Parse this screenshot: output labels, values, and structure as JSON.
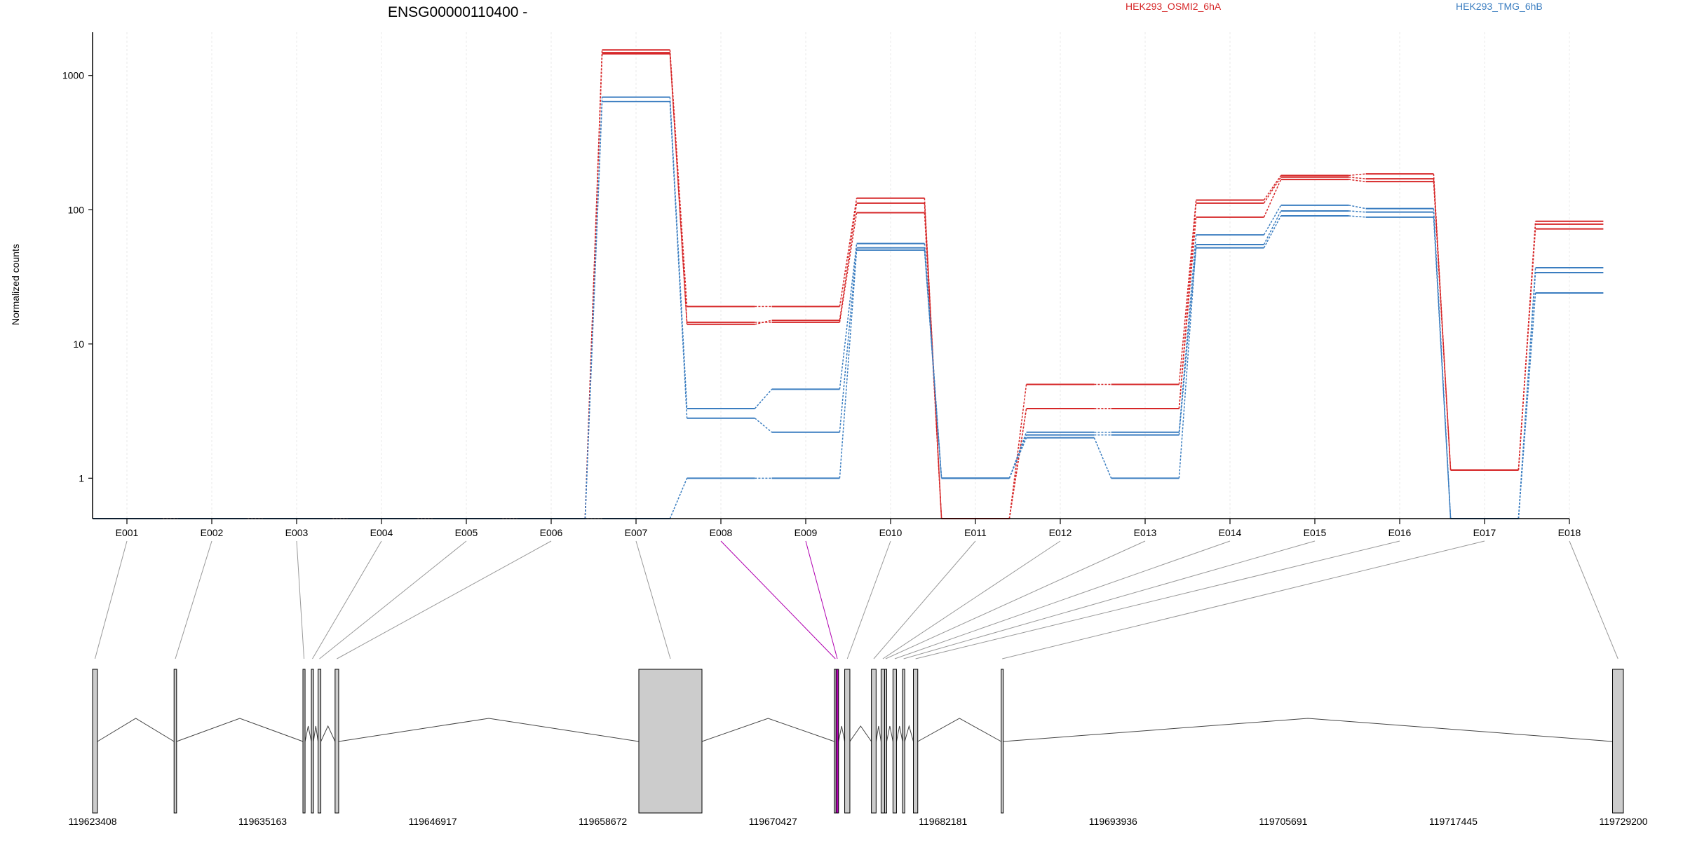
{
  "chart_data": {
    "type": "line",
    "title": "ENSG00000110400 -",
    "ylabel": "Normalized counts",
    "yscale": "log",
    "yticks": [
      1,
      10,
      100,
      1000
    ],
    "ytick_labels": [
      "1",
      "10",
      "100",
      "1000"
    ],
    "ylim": [
      0.5,
      2100
    ],
    "categories": [
      "E001",
      "E002",
      "E003",
      "E004",
      "E005",
      "E006",
      "E007",
      "E008",
      "E009",
      "E010",
      "E011",
      "E012",
      "E013",
      "E014",
      "E015",
      "E016",
      "E017",
      "E018"
    ],
    "legend": [
      {
        "name": "HEK293_OSMI2_6hA",
        "color": "#d62728"
      },
      {
        "name": "HEK293_TMG_6hB",
        "color": "#3a7dc0"
      }
    ],
    "series": [
      {
        "group": 0,
        "values": [
          0.5,
          0.5,
          0.5,
          0.5,
          0.5,
          0.5,
          1550,
          19,
          19,
          122,
          0.5,
          5,
          5,
          118,
          180,
          185,
          1.15,
          82
        ]
      },
      {
        "group": 0,
        "values": [
          0.5,
          0.5,
          0.5,
          0.5,
          0.5,
          0.5,
          1480,
          14,
          15,
          112,
          0.5,
          3.3,
          3.3,
          112,
          175,
          170,
          1.15,
          78
        ]
      },
      {
        "group": 0,
        "values": [
          0.5,
          0.5,
          0.5,
          0.5,
          0.5,
          0.5,
          1450,
          14.5,
          14.5,
          95,
          0.5,
          3.3,
          3.3,
          88,
          168,
          162,
          1.15,
          72
        ]
      },
      {
        "group": 1,
        "values": [
          0.5,
          0.5,
          0.5,
          0.5,
          0.5,
          0.5,
          690,
          3.3,
          4.6,
          56,
          1,
          2.2,
          2.2,
          65,
          108,
          102,
          0.5,
          37
        ]
      },
      {
        "group": 1,
        "values": [
          0.5,
          0.5,
          0.5,
          0.5,
          0.5,
          0.5,
          640,
          2.8,
          2.2,
          52,
          1,
          2,
          1,
          55,
          98,
          96,
          0.5,
          34
        ]
      },
      {
        "group": 1,
        "values": [
          0.5,
          0.5,
          0.5,
          0.5,
          0.5,
          0.5,
          0.5,
          1,
          1,
          50,
          1,
          2.1,
          2.1,
          52,
          90,
          88,
          0.5,
          24
        ]
      }
    ],
    "genomic_axis": {
      "ticks": [
        "119623408",
        "119635163",
        "119646917",
        "119658672",
        "119670427",
        "119682181",
        "119693936",
        "119705691",
        "119717445",
        "119729200"
      ],
      "range": [
        119623408,
        119729200
      ]
    },
    "gene_model": {
      "exon_fill": "#cccccc",
      "highlight_fill": "#b000b0",
      "highlight_exon": "E009",
      "exons": [
        {
          "id": "E001",
          "start": 119623408,
          "end": 119623745
        },
        {
          "id": "E002",
          "start": 119629040,
          "end": 119629215
        },
        {
          "id": "E003",
          "start": 119637948,
          "end": 119638059
        },
        {
          "id": "E004",
          "start": 119638528,
          "end": 119638675
        },
        {
          "id": "E005",
          "start": 119638993,
          "end": 119639185
        },
        {
          "id": "E006",
          "start": 119640168,
          "end": 119640417
        },
        {
          "id": "E007",
          "start": 119661160,
          "end": 119665521
        },
        {
          "id": "E008",
          "start": 119674668,
          "end": 119674786
        },
        {
          "id": "E009",
          "start": 119674786,
          "end": 119674962
        },
        {
          "id": "E010",
          "start": 119675386,
          "end": 119675744
        },
        {
          "id": "E011",
          "start": 119677231,
          "end": 119677556
        },
        {
          "id": "E012",
          "start": 119677900,
          "end": 119678143
        },
        {
          "id": "E013",
          "start": 119678143,
          "end": 119678268
        },
        {
          "id": "E014",
          "start": 119678722,
          "end": 119678966
        },
        {
          "id": "E015",
          "start": 119679384,
          "end": 119679535
        },
        {
          "id": "E016",
          "start": 119680133,
          "end": 119680435
        },
        {
          "id": "E017",
          "start": 119686200,
          "end": 119686315
        },
        {
          "id": "E018",
          "start": 119728450,
          "end": 119729200
        }
      ]
    }
  }
}
